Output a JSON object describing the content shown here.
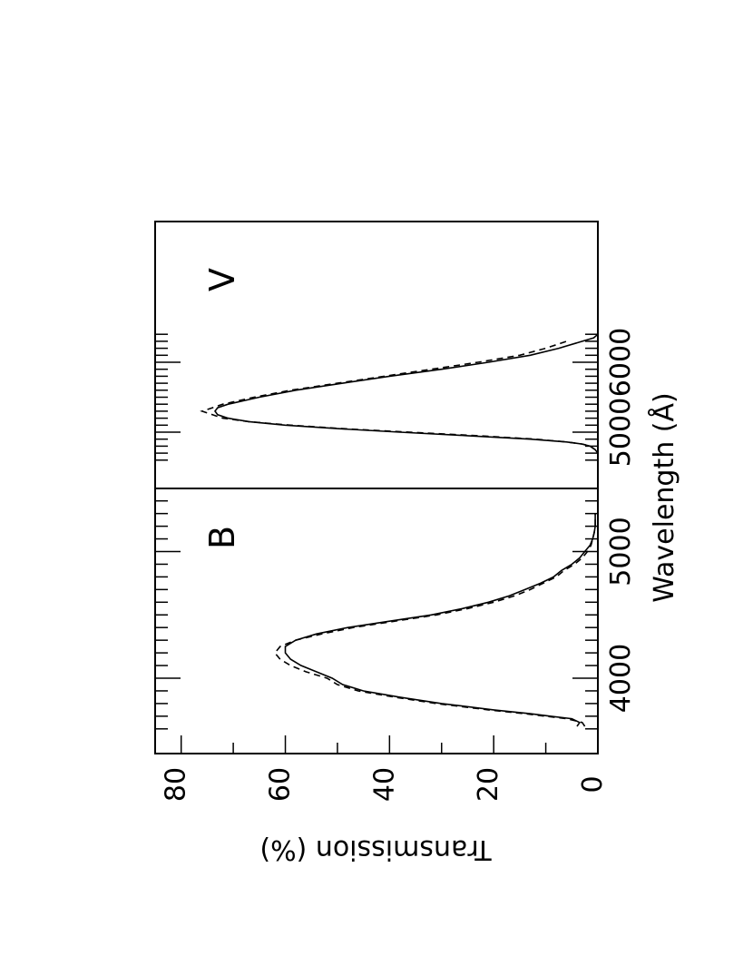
{
  "chart_data": [
    {
      "type": "line",
      "panel_label": "B",
      "x_ticks": [
        4000,
        5000
      ],
      "xlim": [
        3600,
        5500
      ],
      "ylim": [
        0,
        85
      ],
      "series": [
        {
          "style": "solid",
          "x": [
            3620,
            3650,
            3680,
            3700,
            3720,
            3750,
            3800,
            3850,
            3900,
            3950,
            4000,
            4050,
            4100,
            4150,
            4200,
            4250,
            4300,
            4350,
            4400,
            4450,
            4500,
            4550,
            4600,
            4650,
            4700,
            4750,
            4800,
            4850,
            4900,
            4950,
            5000,
            5050,
            5100,
            5150,
            5200,
            5250,
            5300
          ],
          "y": [
            4,
            3.5,
            5,
            9,
            13,
            20,
            30,
            38,
            45,
            49,
            51,
            54,
            57,
            59,
            60,
            60,
            58,
            54,
            48,
            40,
            32,
            26,
            21,
            17,
            14,
            11,
            8.5,
            7,
            5,
            3.5,
            2.5,
            1.5,
            1,
            0.7,
            0.5,
            0.5,
            0.5
          ]
        },
        {
          "style": "dashed",
          "x": [
            3620,
            3650,
            3680,
            3700,
            3720,
            3750,
            3800,
            3850,
            3900,
            3950,
            4000,
            4050,
            4100,
            4150,
            4200,
            4250,
            4300,
            4350,
            4400,
            4450,
            4500,
            4550,
            4600,
            4650,
            4700,
            4750,
            4800,
            4850,
            4900,
            4950,
            5000,
            5050,
            5100,
            5150,
            5200,
            5250,
            5300
          ],
          "y": [
            2.5,
            3,
            6,
            10,
            14,
            21,
            31,
            39,
            46,
            50,
            52,
            56,
            59,
            61,
            62,
            61,
            58,
            53,
            47,
            39,
            31,
            25,
            20,
            16,
            13,
            10.5,
            8,
            6.5,
            4.5,
            3,
            2,
            1.3,
            1,
            0.7,
            0.5,
            0.5,
            0.5
          ]
        }
      ]
    },
    {
      "type": "line",
      "panel_label": "V",
      "x_ticks": [
        5000,
        6000
      ],
      "xlim": [
        4600,
        6400
      ],
      "ylim": [
        0,
        85
      ],
      "series": [
        {
          "style": "solid",
          "x": [
            4600,
            4700,
            4750,
            4800,
            4830,
            4860,
            4900,
            4950,
            5000,
            5050,
            5100,
            5150,
            5200,
            5250,
            5300,
            5350,
            5400,
            5450,
            5500,
            5600,
            5700,
            5800,
            5900,
            6000,
            6100,
            6200,
            6300,
            6350,
            6400
          ],
          "y": [
            0,
            0,
            0.5,
            1.5,
            3,
            6,
            13,
            25,
            38,
            50,
            60,
            67,
            71,
            73,
            73.5,
            73,
            71,
            68,
            65,
            58,
            49,
            40,
            30,
            21,
            13,
            7.5,
            3,
            0.8,
            0
          ],
          "end_x": 6400
        },
        {
          "style": "dashed",
          "x": [
            4600,
            4700,
            4750,
            4800,
            4830,
            4860,
            4900,
            4950,
            5000,
            5050,
            5100,
            5150,
            5200,
            5250,
            5300,
            5350,
            5400,
            5450,
            5500,
            5600,
            5700,
            5800,
            5900,
            6000,
            6100,
            6200,
            6300
          ],
          "y": [
            0,
            0,
            0.5,
            1.5,
            3,
            6,
            12,
            23,
            36,
            49,
            59,
            67,
            72,
            74,
            76,
            74,
            72,
            69,
            66,
            59,
            50,
            41,
            32,
            23,
            15,
            10,
            6
          ]
        }
      ]
    }
  ],
  "axes": {
    "x_label": "Wavelength (Å)",
    "y_label": "Transmission (%)",
    "y_ticks": [
      0,
      20,
      40,
      60,
      80
    ]
  }
}
